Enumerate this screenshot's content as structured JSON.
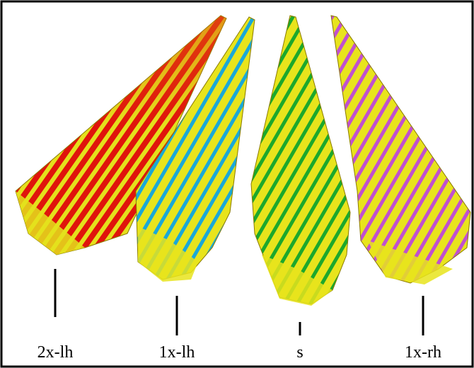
{
  "figure": {
    "labels": [
      "2x-lh",
      "1x-lh",
      "s",
      "1x-rh"
    ]
  }
}
